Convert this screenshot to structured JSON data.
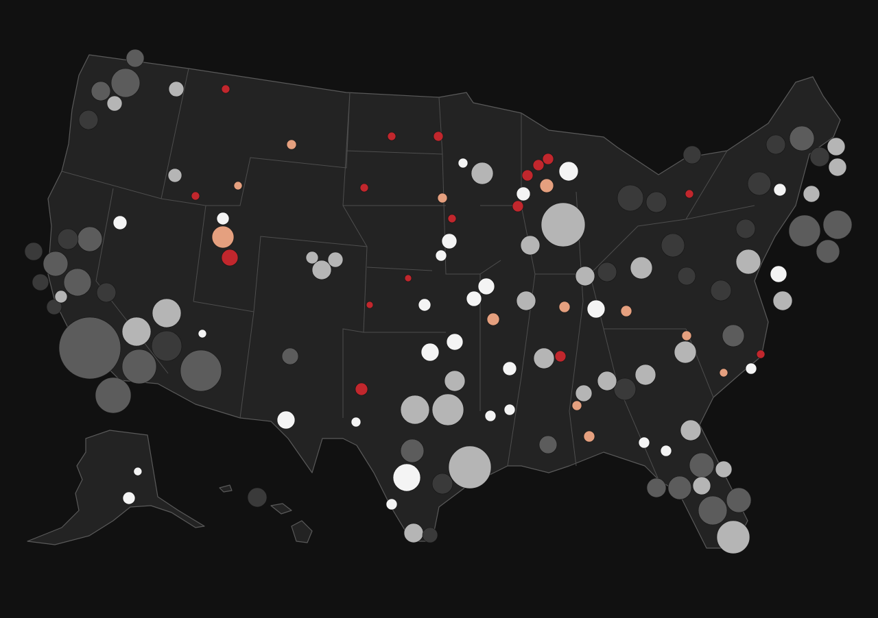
{
  "map": {
    "colors": [
      "#3a3a3a",
      "#5c5c5c",
      "#b5b5b5",
      "#f4f4f4",
      "#e5a07f",
      "#c1272d"
    ],
    "bubbles": [
      [
        -122.2,
        35.4,
        2025,
        1
      ],
      [
        -120.5,
        33.1,
        676,
        1
      ],
      [
        -118.6,
        34.5,
        625,
        1
      ],
      [
        -118.8,
        36.2,
        441,
        2
      ],
      [
        -116.6,
        37.1,
        441,
        2
      ],
      [
        -114.1,
        34.3,
        900,
        1
      ],
      [
        -116.6,
        35.5,
        484,
        0
      ],
      [
        -123.1,
        38.6,
        400,
        1
      ],
      [
        -124.7,
        39.5,
        324,
        1
      ],
      [
        -122.2,
        40.7,
        324,
        1
      ],
      [
        -120,
        41.5,
        100,
        3
      ],
      [
        -119.6,
        48.3,
        441,
        1
      ],
      [
        -115.9,
        48.0,
        121,
        2
      ],
      [
        -120.4,
        47.3,
        121,
        2
      ],
      [
        -121.4,
        47.9,
        196,
        1
      ],
      [
        -118.9,
        49.5,
        169,
        1
      ],
      [
        -112.5,
        40.8,
        256,
        4
      ],
      [
        -112,
        39.8,
        144,
        5
      ],
      [
        -112.5,
        41.7,
        81,
        3
      ],
      [
        -107.5,
        45.3,
        49,
        4
      ],
      [
        -116,
        43.8,
        100,
        2
      ],
      [
        -105.3,
        39.2,
        196,
        2
      ],
      [
        -104.3,
        39.7,
        121,
        2
      ],
      [
        -106,
        39.8,
        81,
        2
      ],
      [
        -107.6,
        35.0,
        144,
        1
      ],
      [
        -107.9,
        31.9,
        169,
        3
      ],
      [
        -102.4,
        33.4,
        81,
        5
      ],
      [
        -99.1,
        29.1,
        400,
        3
      ],
      [
        -94.5,
        29.6,
        961,
        2
      ],
      [
        -98.5,
        32.4,
        441,
        2
      ],
      [
        -96.1,
        32.4,
        529,
        2
      ],
      [
        -98.6,
        26.4,
        196,
        2
      ],
      [
        -98.7,
        30.4,
        289,
        1
      ],
      [
        -100.2,
        27.8,
        64,
        3
      ],
      [
        -87.7,
        41.4,
        1024,
        2
      ],
      [
        -87.3,
        44,
        196,
        3
      ],
      [
        -93.6,
        43.9,
        256,
        2
      ],
      [
        -88.9,
        43.3,
        100,
        4
      ],
      [
        -96,
        40.6,
        121,
        3
      ],
      [
        -93.3,
        38.4,
        144,
        3
      ],
      [
        -90.4,
        37.7,
        196,
        2
      ],
      [
        -85.3,
        37.3,
        169,
        3
      ],
      [
        -82,
        39.3,
        256,
        2
      ],
      [
        -86.1,
        38.9,
        196,
        2
      ],
      [
        -74.2,
        39.6,
        324,
        2
      ],
      [
        -70.1,
        41.1,
        529,
        1
      ],
      [
        -67.7,
        41.4,
        441,
        1
      ],
      [
        -70.3,
        45.6,
        324,
        1
      ],
      [
        -67.8,
        45.2,
        169,
        2
      ],
      [
        -67.7,
        44.2,
        169,
        2
      ],
      [
        -72,
        39.0,
        144,
        3
      ],
      [
        -71.9,
        43.1,
        81,
        3
      ],
      [
        -69.6,
        42.9,
        144,
        2
      ],
      [
        -68.4,
        40.1,
        289,
        1
      ],
      [
        -71.7,
        37.7,
        196,
        2
      ],
      [
        -78.8,
        35.2,
        256,
        2
      ],
      [
        -75.3,
        36.0,
        256,
        1
      ],
      [
        -81.7,
        34.1,
        225,
        2
      ],
      [
        -78.4,
        31.4,
        225,
        2
      ],
      [
        -77.6,
        29.7,
        324,
        1
      ],
      [
        -76.8,
        27.5,
        441,
        1
      ],
      [
        -75.3,
        26.2,
        576,
        2
      ],
      [
        -74.9,
        28.0,
        324,
        1
      ],
      [
        -77.6,
        28.7,
        169,
        2
      ],
      [
        -79.2,
        28.6,
        289,
        1
      ],
      [
        -80.9,
        28.6,
        196,
        1
      ],
      [
        -76,
        29.5,
        144,
        2
      ],
      [
        -86.2,
        33.2,
        144,
        2
      ],
      [
        -89.1,
        34.9,
        225,
        2
      ],
      [
        -91.6,
        34.4,
        100,
        3
      ],
      [
        -95.6,
        35.7,
        144,
        3
      ],
      [
        -97.4,
        35.2,
        169,
        3
      ],
      [
        -95.6,
        33.8,
        225,
        2
      ],
      [
        -94.2,
        37.8,
        121,
        3
      ],
      [
        -90.1,
        40.4,
        196,
        2
      ],
      [
        -82.8,
        42.7,
        361,
        0
      ],
      [
        -79.7,
        40.4,
        289,
        0
      ],
      [
        -73.4,
        43.4,
        289,
        0
      ],
      [
        -72.2,
        45.3,
        196,
        0
      ],
      [
        -78.3,
        44.8,
        169,
        0
      ],
      [
        -76.2,
        38.2,
        225,
        0
      ],
      [
        -83.2,
        33.4,
        256,
        0
      ],
      [
        -84.5,
        39.1,
        196,
        0
      ],
      [
        -78.7,
        38.9,
        169,
        0
      ],
      [
        -80.9,
        42.5,
        225,
        0
      ],
      [
        -74.4,
        41.2,
        196,
        0
      ],
      [
        -69,
        44.7,
        196,
        0
      ],
      [
        -124.8,
        37.4,
        121,
        0
      ],
      [
        -126.3,
        40.1,
        169,
        0
      ],
      [
        -125.8,
        38.6,
        144,
        0
      ],
      [
        -123.8,
        40.7,
        225,
        0
      ],
      [
        -121,
        38.1,
        196,
        0
      ],
      [
        -122.3,
        46.5,
        196,
        0
      ],
      [
        -97.4,
        26.3,
        121,
        0
      ],
      [
        -96.5,
        28.8,
        225,
        0
      ],
      [
        -88.8,
        30.7,
        169,
        1
      ],
      [
        -84.5,
        33.8,
        196,
        2
      ],
      [
        -100.2,
        45.7,
        36,
        5
      ],
      [
        -102.2,
        43.2,
        36,
        5
      ],
      [
        -96.8,
        45.7,
        49,
        5
      ],
      [
        -112.3,
        48.0,
        36,
        5
      ],
      [
        -89.5,
        44.3,
        64,
        5
      ],
      [
        -88.8,
        44.6,
        64,
        5
      ],
      [
        -90.3,
        43.8,
        64,
        5
      ],
      [
        -91,
        42.3,
        64,
        5
      ],
      [
        -95.8,
        41.7,
        36,
        5
      ],
      [
        -99,
        38.8,
        25,
        5
      ],
      [
        -101.8,
        37.5,
        25,
        5
      ],
      [
        -87.9,
        35.0,
        64,
        5
      ],
      [
        -78.5,
        42.9,
        36,
        5
      ],
      [
        -73.3,
        35.1,
        36,
        5
      ],
      [
        -114.5,
        42.8,
        36,
        5
      ],
      [
        -92.8,
        36.8,
        81,
        4
      ],
      [
        -87.6,
        37.4,
        64,
        4
      ],
      [
        -83.1,
        37.2,
        64,
        4
      ],
      [
        -78.7,
        36.0,
        49,
        4
      ],
      [
        -85.8,
        31.1,
        64,
        4
      ],
      [
        -86.7,
        32.6,
        49,
        4
      ],
      [
        -96.5,
        42.7,
        49,
        4
      ],
      [
        -111.4,
        43.3,
        36,
        4
      ],
      [
        -76,
        34.2,
        36,
        4
      ],
      [
        -90.6,
        42.9,
        100,
        3
      ],
      [
        -96.6,
        39.9,
        64,
        3
      ],
      [
        -74,
        34.4,
        64,
        3
      ],
      [
        -80.2,
        30.4,
        64,
        3
      ],
      [
        -81.8,
        30.8,
        64,
        3
      ],
      [
        -97.8,
        37.5,
        81,
        3
      ],
      [
        -91.6,
        32.4,
        64,
        3
      ],
      [
        -93,
        32.1,
        64,
        3
      ],
      [
        -114,
        36.1,
        36,
        3
      ],
      [
        -124.3,
        37.9,
        81,
        2
      ],
      [
        -95,
        44.4,
        49,
        3
      ],
      [
        -102.8,
        31.8,
        49,
        3
      ]
    ],
    "alaska_bubbles": [
      [
        -150,
        61.2,
        81,
        3
      ],
      [
        -147.7,
        64.8,
        36,
        3
      ]
    ],
    "hawaii_bubbles": [
      [
        -157.9,
        21.3,
        196,
        0
      ]
    ]
  }
}
